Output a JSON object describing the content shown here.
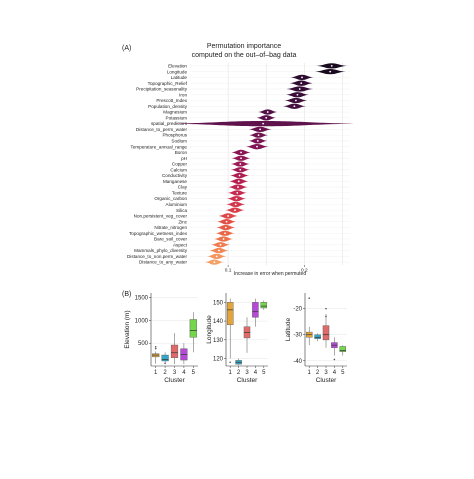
{
  "panel_a": {
    "label": "(A)",
    "title_line1": "Permutation importance",
    "title_line2": "computed on the out–of–bag data",
    "xlabel": "Increase in error when permuted"
  },
  "panel_b": {
    "label": "(B)"
  },
  "chart_data": [
    {
      "type": "violin",
      "xlim": [
        0.05,
        0.26
      ],
      "xticks": [
        0.1,
        0.2
      ],
      "xtick_labels": [
        "0.1",
        "0.2"
      ],
      "grid": true,
      "variables": [
        {
          "name": "Elevation",
          "center": 0.236,
          "spread": 0.008,
          "color": "#1a0a1f"
        },
        {
          "name": "Longitude",
          "center": 0.234,
          "spread": 0.008,
          "color": "#1a0a1f"
        },
        {
          "name": "Latitude",
          "center": 0.197,
          "spread": 0.006,
          "color": "#2b0b2e"
        },
        {
          "name": "Topographic_Relief",
          "center": 0.196,
          "spread": 0.006,
          "color": "#320c33"
        },
        {
          "name": "Precipitation_seasonality",
          "center": 0.194,
          "spread": 0.007,
          "color": "#360d36"
        },
        {
          "name": "Iron",
          "center": 0.191,
          "spread": 0.006,
          "color": "#3a0e39"
        },
        {
          "name": "Prescott_Index",
          "center": 0.189,
          "spread": 0.006,
          "color": "#3f0f3c"
        },
        {
          "name": "Population_density",
          "center": 0.187,
          "spread": 0.006,
          "color": "#44103f"
        },
        {
          "name": "Magnesium",
          "center": 0.152,
          "spread": 0.005,
          "color": "#511046"
        },
        {
          "name": "Potassium",
          "center": 0.15,
          "spread": 0.005,
          "color": "#581149"
        },
        {
          "name": "spatial_predictors",
          "center": 0.146,
          "spread": 0.05,
          "color": "#60124c"
        },
        {
          "name": "Distance_to_perm_water",
          "center": 0.142,
          "spread": 0.006,
          "color": "#68134e"
        },
        {
          "name": "Phosphorus",
          "center": 0.14,
          "spread": 0.005,
          "color": "#701450"
        },
        {
          "name": "Sodium",
          "center": 0.139,
          "spread": 0.005,
          "color": "#781552"
        },
        {
          "name": "Temperature_annual_range",
          "center": 0.138,
          "spread": 0.006,
          "color": "#801653"
        },
        {
          "name": "Boron",
          "center": 0.117,
          "spread": 0.005,
          "color": "#891754"
        },
        {
          "name": "pH",
          "center": 0.117,
          "spread": 0.005,
          "color": "#921855"
        },
        {
          "name": "Copper",
          "center": 0.116,
          "spread": 0.005,
          "color": "#9b1a55"
        },
        {
          "name": "Calcium",
          "center": 0.116,
          "spread": 0.005,
          "color": "#a41c55"
        },
        {
          "name": "Conductivity",
          "center": 0.115,
          "spread": 0.005,
          "color": "#ad1e54"
        },
        {
          "name": "Manganese",
          "center": 0.114,
          "spread": 0.005,
          "color": "#b52153"
        },
        {
          "name": "Clay",
          "center": 0.113,
          "spread": 0.005,
          "color": "#be2552"
        },
        {
          "name": "Texture",
          "center": 0.112,
          "spread": 0.005,
          "color": "#c52a50"
        },
        {
          "name": "Organic_carbon",
          "center": 0.111,
          "spread": 0.005,
          "color": "#cc304e"
        },
        {
          "name": "Aluminium",
          "center": 0.11,
          "spread": 0.005,
          "color": "#d3374c"
        },
        {
          "name": "Silica",
          "center": 0.109,
          "spread": 0.005,
          "color": "#d93f4a"
        },
        {
          "name": "Non.persistent_veg_cover",
          "center": 0.1,
          "spread": 0.005,
          "color": "#de4848"
        },
        {
          "name": "Zinc",
          "center": 0.098,
          "spread": 0.005,
          "color": "#e25147"
        },
        {
          "name": "Nitrate_nitrogen",
          "center": 0.097,
          "spread": 0.005,
          "color": "#e65c47"
        },
        {
          "name": "Topographic_wetness_index",
          "center": 0.096,
          "spread": 0.005,
          "color": "#e96748"
        },
        {
          "name": "Bare_soil_cover",
          "center": 0.094,
          "spread": 0.005,
          "color": "#ec724b"
        },
        {
          "name": "Aspect",
          "center": 0.09,
          "spread": 0.005,
          "color": "#ee7d50"
        },
        {
          "name": "Mammals_phylo_diversity",
          "center": 0.088,
          "spread": 0.005,
          "color": "#f08957"
        },
        {
          "name": "Distance_to_non.perm_water",
          "center": 0.085,
          "spread": 0.005,
          "color": "#f2955f"
        },
        {
          "name": "Distance_to_any_water",
          "center": 0.082,
          "spread": 0.005,
          "color": "#f4a168"
        }
      ]
    },
    {
      "type": "boxplot",
      "ylabel": "Elevation (m)",
      "xlabel": "Cluster",
      "categories": [
        "1",
        "2",
        "3",
        "4",
        "5"
      ],
      "ylim": [
        0,
        1600
      ],
      "yticks": [
        500,
        1000,
        1500
      ],
      "boxes": [
        {
          "q1": 200,
          "median": 240,
          "q3": 270,
          "lo": 50,
          "hi": 320,
          "outliers": [
            380,
            420
          ],
          "color": "#e3a53a"
        },
        {
          "q1": 110,
          "median": 140,
          "q3": 240,
          "lo": 40,
          "hi": 300,
          "outliers": [
            60
          ],
          "color": "#34a6c7"
        },
        {
          "q1": 180,
          "median": 290,
          "q3": 460,
          "lo": 40,
          "hi": 720,
          "outliers": [],
          "color": "#e06a6a"
        },
        {
          "q1": 130,
          "median": 250,
          "q3": 380,
          "lo": 40,
          "hi": 500,
          "outliers": [],
          "color": "#b54ad6"
        },
        {
          "q1": 630,
          "median": 780,
          "q3": 1020,
          "lo": 300,
          "hi": 1180,
          "outliers": [],
          "color": "#74d64b"
        }
      ]
    },
    {
      "type": "boxplot",
      "ylabel": "Longitude",
      "xlabel": "Cluster",
      "categories": [
        "1",
        "2",
        "3",
        "4",
        "5"
      ],
      "ylim": [
        116,
        155
      ],
      "yticks": [
        120,
        130,
        140,
        150
      ],
      "boxes": [
        {
          "q1": 138,
          "median": 146,
          "q3": 150,
          "lo": 120,
          "hi": 152,
          "outliers": [
            118
          ],
          "color": "#e3a53a"
        },
        {
          "q1": 117,
          "median": 118,
          "q3": 119,
          "lo": 116.5,
          "hi": 120,
          "outliers": [],
          "color": "#34a6c7"
        },
        {
          "q1": 131,
          "median": 134,
          "q3": 137,
          "lo": 123,
          "hi": 142,
          "outliers": [],
          "color": "#e06a6a"
        },
        {
          "q1": 142,
          "median": 145,
          "q3": 150,
          "lo": 137,
          "hi": 152,
          "outliers": [],
          "color": "#b54ad6"
        },
        {
          "q1": 147,
          "median": 148,
          "q3": 150,
          "lo": 146,
          "hi": 151,
          "outliers": [],
          "color": "#74d64b"
        }
      ]
    },
    {
      "type": "boxplot",
      "ylabel": "Latitude",
      "xlabel": "Cluster",
      "categories": [
        "1",
        "2",
        "3",
        "4",
        "5"
      ],
      "ylim": [
        -42,
        -14
      ],
      "yticks": [
        -20,
        -30,
        -40
      ],
      "boxes": [
        {
          "q1": -31,
          "median": -30,
          "q3": -29,
          "lo": -34,
          "hi": -27,
          "outliers": [
            -16
          ],
          "color": "#e3a53a"
        },
        {
          "q1": -31.5,
          "median": -31,
          "q3": -30,
          "lo": -32.5,
          "hi": -29.5,
          "outliers": [],
          "color": "#34a6c7"
        },
        {
          "q1": -32,
          "median": -30,
          "q3": -26.5,
          "lo": -35,
          "hi": -22,
          "outliers": [
            -23,
            -20
          ],
          "color": "#e06a6a"
        },
        {
          "q1": -35,
          "median": -34,
          "q3": -33,
          "lo": -38,
          "hi": -31,
          "outliers": [
            -39.5
          ],
          "color": "#b54ad6"
        },
        {
          "q1": -36.5,
          "median": -36,
          "q3": -34.5,
          "lo": -38,
          "hi": -34,
          "outliers": [],
          "color": "#74d64b"
        }
      ]
    }
  ]
}
